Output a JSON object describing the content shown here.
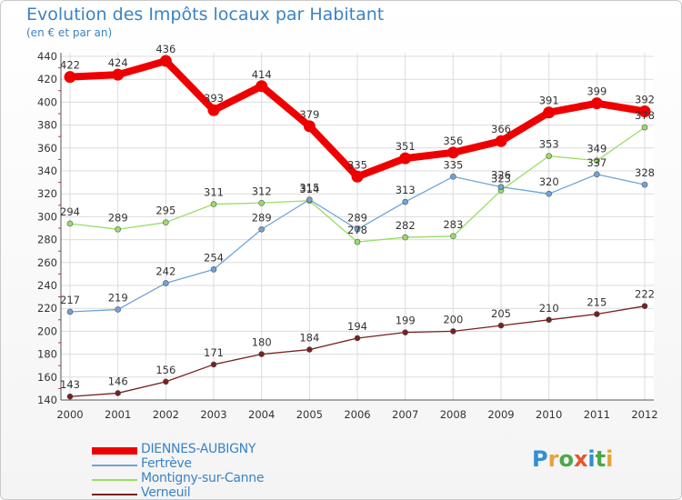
{
  "title": "Evolution des Impôts locaux par Habitant",
  "subtitle": "(en € et par an)",
  "logo": {
    "letters": [
      "P",
      "r",
      "o",
      "x",
      "i",
      "t",
      "i"
    ],
    "colors": [
      "#2f8fd8",
      "#e8a23a",
      "#4aa84a",
      "#e8542f",
      "#2f8fd8",
      "#4aa84a",
      "#e8a23a"
    ]
  },
  "chart_data": {
    "type": "line",
    "title": "Evolution des Impôts locaux par Habitant",
    "subtitle": "(en € et par an)",
    "xlabel": "",
    "ylabel": "",
    "x": [
      "2000",
      "2001",
      "2002",
      "2003",
      "2004",
      "2005",
      "2006",
      "2007",
      "2008",
      "2009",
      "2010",
      "2011",
      "2012"
    ],
    "ylim": [
      140,
      440
    ],
    "yticks": [
      140,
      160,
      180,
      200,
      220,
      240,
      260,
      280,
      300,
      320,
      340,
      360,
      380,
      400,
      420,
      440
    ],
    "grid": true,
    "legend_position": "bottom-left",
    "series": [
      {
        "name": "DIENNES-AUBIGNY",
        "color": "#ee0000",
        "values": [
          422,
          424,
          436,
          393,
          414,
          379,
          335,
          351,
          356,
          366,
          391,
          399,
          392
        ]
      },
      {
        "name": "Fertrève",
        "color": "#6fa3d8",
        "values": [
          217,
          219,
          242,
          254,
          289,
          315,
          289,
          313,
          335,
          326,
          320,
          337,
          328
        ]
      },
      {
        "name": "Montigny-sur-Canne",
        "color": "#99dd66",
        "values": [
          294,
          289,
          295,
          311,
          312,
          314,
          278,
          282,
          283,
          323,
          353,
          349,
          378
        ]
      },
      {
        "name": "Verneuil",
        "color": "#7a1f1f",
        "values": [
          143,
          146,
          156,
          171,
          180,
          184,
          194,
          199,
          200,
          205,
          210,
          215,
          222
        ]
      }
    ]
  }
}
